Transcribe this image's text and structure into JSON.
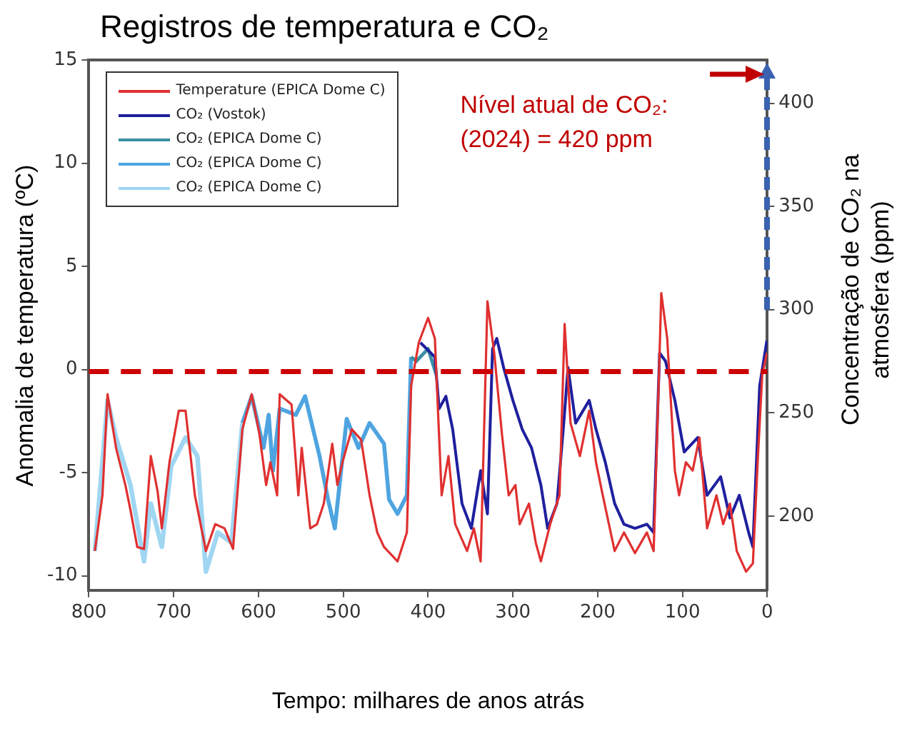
{
  "chart_data": {
    "type": "line",
    "title": "Registros de temperatura e CO₂",
    "xlabel": "Tempo: milhares de anos atrás",
    "ylabel": "Anomalia de temperatura (ºC)",
    "y2label": "Concentração de CO₂ na atmosfera (ppm)",
    "xlim": [
      800,
      0
    ],
    "xticks": [
      800,
      700,
      600,
      500,
      400,
      300,
      200,
      100,
      0
    ],
    "ylim": [
      -10.7,
      15
    ],
    "yticks": [
      -10,
      -5,
      0,
      5,
      10,
      15
    ],
    "y2lim": [
      164,
      421
    ],
    "y2ticks": [
      200,
      250,
      300,
      350,
      400
    ],
    "grid": false,
    "legend": "top left",
    "marker": "none",
    "line_style": "solid",
    "annotations": [
      "Nível atual de CO₂:",
      "(2024) = 420 ppm"
    ],
    "ref_lines": [
      {
        "axis": "y2",
        "value": 270,
        "label": null,
        "color": "#cc0000",
        "line_style": "dashed"
      }
    ],
    "series": [
      {
        "name": "Temperature (EPICA Dome C)",
        "color": "#e03030",
        "x": [
          793,
          784,
          778,
          768,
          757,
          751,
          743,
          735,
          727,
          719,
          714,
          705,
          694,
          686,
          675,
          662,
          651,
          640,
          630,
          619,
          608,
          599,
          591,
          586,
          578,
          575,
          561,
          553,
          549,
          539,
          531,
          523,
          513,
          507,
          501,
          490,
          479,
          469,
          460,
          452,
          436,
          425,
          420,
          411,
          400,
          392,
          384,
          376,
          368,
          354,
          346,
          338,
          330,
          322,
          313,
          305,
          297,
          292,
          281,
          273,
          267,
          256,
          245,
          239,
          232,
          221,
          210,
          202,
          194,
          180,
          169,
          156,
          142,
          134,
          127,
          125,
          118,
          109,
          104,
          96,
          88,
          80,
          71,
          60,
          52,
          44,
          36,
          25,
          17,
          11,
          6,
          0.5
        ],
        "values": [
          -8.8,
          -6.1,
          -1.2,
          -3.8,
          -5.6,
          -6.8,
          -8.6,
          -8.7,
          -4.2,
          -5.9,
          -7.7,
          -4.5,
          -2.0,
          -2.0,
          -6.1,
          -8.8,
          -7.5,
          -7.7,
          -8.7,
          -2.9,
          -1.2,
          -3.1,
          -5.6,
          -4.5,
          -6.1,
          -1.2,
          -1.7,
          -6.1,
          -3.8,
          -7.7,
          -7.5,
          -6.5,
          -3.6,
          -5.6,
          -4.5,
          -2.9,
          -3.4,
          -6.1,
          -7.9,
          -8.6,
          -9.3,
          -7.9,
          -0.8,
          1.3,
          2.5,
          1.5,
          -6.1,
          -4.2,
          -7.5,
          -8.8,
          -7.7,
          -9.3,
          3.3,
          0.8,
          -3.1,
          -6.1,
          -5.6,
          -7.5,
          -6.5,
          -8.4,
          -9.3,
          -7.5,
          -6.1,
          2.2,
          -2.6,
          -4.2,
          -2.0,
          -4.5,
          -6.1,
          -8.8,
          -7.9,
          -8.9,
          -7.9,
          -8.8,
          0.8,
          3.7,
          1.5,
          -4.9,
          -6.1,
          -4.5,
          -4.9,
          -3.3,
          -7.7,
          -6.1,
          -7.5,
          -6.5,
          -8.8,
          -9.8,
          -9.4,
          -4.2,
          -0.3,
          0.8
        ]
      },
      {
        "name": "CO₂ (Vostok)",
        "color": "#1f1f9e",
        "axis": "y2",
        "x": [
          409,
          392,
          387,
          379,
          371,
          360,
          349,
          338,
          330,
          324,
          319,
          311,
          300,
          289,
          278,
          267,
          259,
          248,
          240,
          235,
          226,
          210,
          202,
          191,
          180,
          169,
          156,
          142,
          134,
          127,
          120,
          109,
          98,
          82,
          71,
          55,
          44,
          33,
          22,
          17,
          9,
          0.5
        ],
        "values": [
          284,
          277,
          252,
          258,
          242,
          206,
          194,
          222,
          201,
          281,
          286,
          272,
          256,
          242,
          233,
          215,
          194,
          206,
          245,
          272,
          245,
          256,
          242,
          226,
          206,
          196,
          194,
          196,
          192,
          279,
          275,
          256,
          231,
          238,
          210,
          219,
          199,
          210,
          192,
          185,
          263,
          285
        ]
      },
      {
        "name": "CO₂ (EPICA Dome C)",
        "color": "#3a8fa3",
        "axis": "y2",
        "x": [
          420,
          414,
          400,
          390
        ],
        "values": [
          277,
          275,
          281,
          268
        ]
      },
      {
        "name": "CO₂ (EPICA Dome C)",
        "color": "#4ea4e0",
        "axis": "y2",
        "x": [
          619,
          608,
          594,
          588,
          583,
          575,
          556,
          545,
          528,
          518,
          510,
          496,
          482,
          469,
          452,
          446,
          436,
          425,
          420
        ],
        "values": [
          245,
          258,
          233,
          249,
          222,
          252,
          249,
          258,
          229,
          208,
          194,
          247,
          233,
          245,
          235,
          208,
          201,
          210,
          277
        ]
      },
      {
        "name": "CO₂ (EPICA Dome C)",
        "color": "#9fd6f2",
        "axis": "y2",
        "x": [
          793,
          778,
          768,
          751,
          735,
          727,
          714,
          703,
          686,
          672,
          662,
          648,
          632,
          619
        ],
        "values": [
          183,
          256,
          238,
          215,
          178,
          206,
          185,
          224,
          238,
          229,
          173,
          192,
          187,
          245
        ]
      }
    ]
  }
}
